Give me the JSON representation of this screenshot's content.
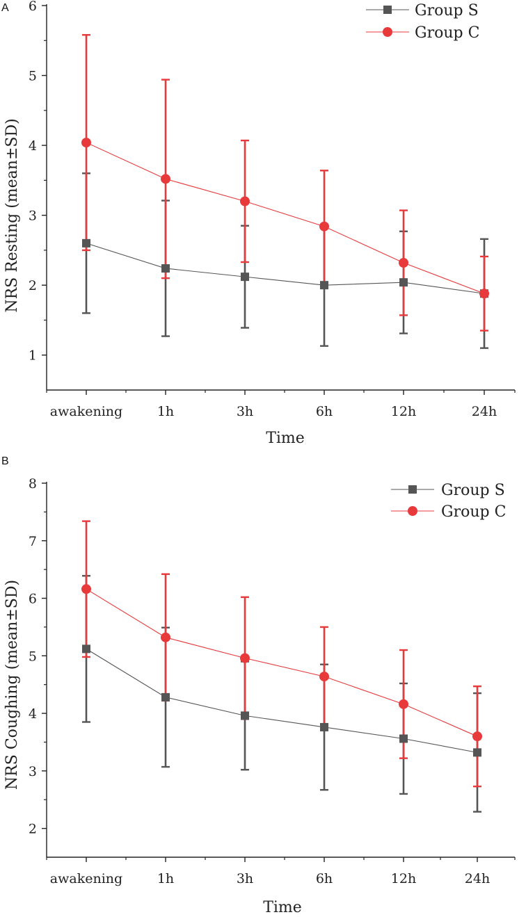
{
  "chart_data": [
    {
      "panel_label": "A",
      "type": "line",
      "categories": [
        "awakening",
        "1h",
        "3h",
        "6h",
        "12h",
        "24h"
      ],
      "xlabel": "Time",
      "ylabel": "NRS Resting (mean±SD)",
      "ylim": [
        0.5,
        6
      ],
      "yticks": [
        1,
        2,
        3,
        4,
        5,
        6
      ],
      "legend_position": "top-right",
      "series": [
        {
          "name": "Group S",
          "color": "#555555",
          "marker": "square",
          "values": [
            2.6,
            2.24,
            2.12,
            2.0,
            2.04,
            1.88
          ],
          "sd": [
            1.0,
            0.97,
            0.73,
            0.87,
            0.73,
            0.78
          ]
        },
        {
          "name": "Group C",
          "color": "#e8393b",
          "marker": "circle",
          "values": [
            4.04,
            3.52,
            3.2,
            2.84,
            2.32,
            1.88
          ],
          "sd": [
            1.54,
            1.42,
            0.87,
            0.8,
            0.75,
            0.53
          ]
        }
      ]
    },
    {
      "panel_label": "B",
      "type": "line",
      "categories": [
        "awakening",
        "1h",
        "3h",
        "6h",
        "12h",
        "24h"
      ],
      "xlabel": "Time",
      "ylabel": "NRS Coughing (mean±SD)",
      "ylim": [
        1.5,
        8
      ],
      "yticks": [
        2,
        3,
        4,
        5,
        6,
        7,
        8
      ],
      "legend_position": "top-right",
      "series": [
        {
          "name": "Group S",
          "color": "#555555",
          "marker": "square",
          "values": [
            5.12,
            4.28,
            3.96,
            3.76,
            3.56,
            3.32
          ],
          "sd": [
            1.27,
            1.21,
            0.94,
            1.09,
            0.96,
            1.03
          ]
        },
        {
          "name": "Group C",
          "color": "#e8393b",
          "marker": "circle",
          "values": [
            6.16,
            5.32,
            4.96,
            4.64,
            4.16,
            3.6
          ],
          "sd": [
            1.18,
            1.1,
            1.06,
            0.86,
            0.94,
            0.87
          ]
        }
      ]
    }
  ]
}
